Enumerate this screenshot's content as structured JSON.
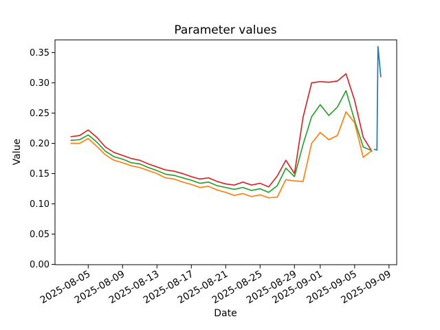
{
  "chart_data": {
    "type": "line",
    "title": "Parameter values",
    "xlabel": "Date",
    "ylabel": "Value",
    "x_start_date": "2025-08-03",
    "x_tick_labels": [
      "2025-08-05",
      "2025-08-09",
      "2025-08-13",
      "2025-08-17",
      "2025-08-21",
      "2025-08-25",
      "2025-08-29",
      "2025-09-01",
      "2025-09-05",
      "2025-09-09"
    ],
    "y_tick_labels": [
      "0.00",
      "0.05",
      "0.10",
      "0.15",
      "0.20",
      "0.25",
      "0.30",
      "0.35"
    ],
    "ylim": [
      0.0,
      0.3705
    ],
    "grid": false,
    "legend": "none",
    "background_color": "#ffffff",
    "axes_edge_color": "#000000",
    "dates": [
      "2025-08-03",
      "2025-08-04",
      "2025-08-05",
      "2025-08-06",
      "2025-08-07",
      "2025-08-08",
      "2025-08-09",
      "2025-08-10",
      "2025-08-11",
      "2025-08-12",
      "2025-08-13",
      "2025-08-14",
      "2025-08-15",
      "2025-08-16",
      "2025-08-17",
      "2025-08-18",
      "2025-08-19",
      "2025-08-20",
      "2025-08-21",
      "2025-08-22",
      "2025-08-23",
      "2025-08-24",
      "2025-08-25",
      "2025-08-26",
      "2025-08-27",
      "2025-08-28",
      "2025-08-29",
      "2025-08-30",
      "2025-08-31",
      "2025-09-01",
      "2025-09-02",
      "2025-09-03",
      "2025-09-04",
      "2025-09-05",
      "2025-09-06",
      "2025-09-07"
    ],
    "series": [
      {
        "name": "red",
        "color": "#d62728",
        "values": [
          0.211,
          0.213,
          0.222,
          0.21,
          0.194,
          0.185,
          0.18,
          0.175,
          0.172,
          0.166,
          0.161,
          0.156,
          0.154,
          0.15,
          0.145,
          0.141,
          0.143,
          0.137,
          0.133,
          0.131,
          0.136,
          0.131,
          0.134,
          0.128,
          0.146,
          0.172,
          0.15,
          0.243,
          0.3,
          0.302,
          0.301,
          0.303,
          0.315,
          0.271,
          0.21,
          0.187
        ]
      },
      {
        "name": "green",
        "color": "#2ca02c",
        "values": [
          0.205,
          0.206,
          0.214,
          0.202,
          0.187,
          0.178,
          0.174,
          0.168,
          0.166,
          0.16,
          0.155,
          0.149,
          0.147,
          0.143,
          0.139,
          0.134,
          0.136,
          0.13,
          0.127,
          0.124,
          0.127,
          0.122,
          0.125,
          0.119,
          0.13,
          0.159,
          0.145,
          0.198,
          0.244,
          0.264,
          0.246,
          0.26,
          0.287,
          0.238,
          0.194,
          0.188
        ]
      },
      {
        "name": "orange",
        "color": "#ff7f0e",
        "values": [
          0.2,
          0.2,
          0.208,
          0.195,
          0.181,
          0.172,
          0.168,
          0.163,
          0.16,
          0.155,
          0.15,
          0.143,
          0.141,
          0.136,
          0.132,
          0.127,
          0.129,
          0.123,
          0.119,
          0.114,
          0.117,
          0.112,
          0.115,
          0.11,
          0.111,
          0.14,
          0.138,
          0.137,
          0.2,
          0.218,
          0.206,
          0.213,
          0.252,
          0.234,
          0.177,
          0.188
        ]
      },
      {
        "name": "blue",
        "color": "#1f77b4",
        "day_offsets": [
          35.3,
          35.6,
          35.72,
          36.05
        ],
        "values": [
          0.19,
          0.189,
          0.36,
          0.31
        ]
      }
    ]
  }
}
